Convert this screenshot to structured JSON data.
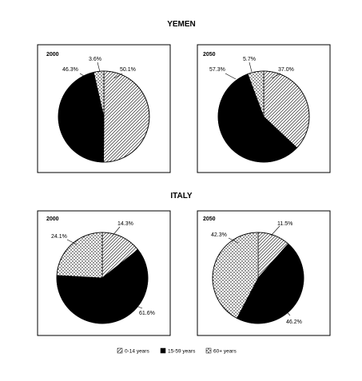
{
  "legend": {
    "items": [
      {
        "label": "0-14 years",
        "pattern": "hatch"
      },
      {
        "label": "15-59 years",
        "pattern": "solid"
      },
      {
        "label": "60+ years",
        "pattern": "dots"
      }
    ]
  },
  "colors": {
    "solid": "#000000",
    "frame": "#000000",
    "background": "#ffffff"
  },
  "chart_data": [
    {
      "type": "pie",
      "title": "YEMEN",
      "subtitle": "2000",
      "categories": [
        "0-14 years",
        "15-59 years",
        "60+ years"
      ],
      "values": [
        50.1,
        46.3,
        3.6
      ],
      "labels": [
        "50.1%",
        "46.3%",
        "3.6%"
      ]
    },
    {
      "type": "pie",
      "title": "YEMEN",
      "subtitle": "2050",
      "categories": [
        "0-14 years",
        "15-59 years",
        "60+ years"
      ],
      "values": [
        37.0,
        57.3,
        5.7
      ],
      "labels": [
        "37.0%",
        "57.3%",
        "5.7%"
      ]
    },
    {
      "type": "pie",
      "title": "ITALY",
      "subtitle": "2000",
      "categories": [
        "0-14 years",
        "15-59 years",
        "60+ years"
      ],
      "values": [
        14.3,
        61.6,
        24.1
      ],
      "labels": [
        "14.3%",
        "61.6%",
        "24.1%"
      ]
    },
    {
      "type": "pie",
      "title": "ITALY",
      "subtitle": "2050",
      "categories": [
        "0-14 years",
        "15-59 years",
        "60+ years"
      ],
      "values": [
        11.5,
        46.2,
        42.3
      ],
      "labels": [
        "11.5%",
        "46.2%",
        "42.3%"
      ]
    }
  ]
}
